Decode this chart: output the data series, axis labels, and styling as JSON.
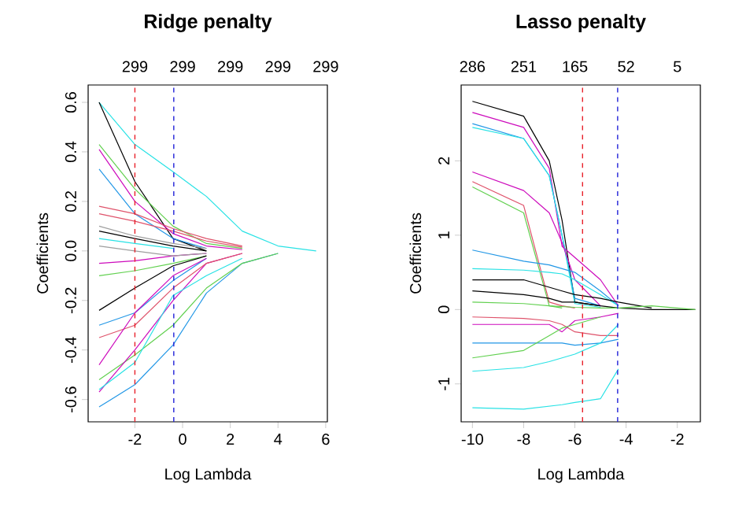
{
  "chart_data": [
    {
      "type": "line",
      "title": "Ridge penalty",
      "xlabel": "Log Lambda",
      "ylabel": "Coefficients",
      "xlim": [
        -3.96,
        6.07
      ],
      "ylim": [
        -0.69,
        0.67
      ],
      "xticks": [
        -2,
        0,
        2,
        4,
        6
      ],
      "yticks": [
        -0.6,
        -0.4,
        -0.2,
        {
          "value": 0,
          "label": "0.0"
        },
        0.2,
        0.4,
        0.6
      ],
      "annotations": [
        "299",
        "299",
        "299",
        "299",
        "299"
      ],
      "x": [
        -3.5,
        -2,
        -0.4,
        1,
        2.5,
        4,
        5.6
      ],
      "series": [
        {
          "color": "#28E2E5",
          "values": [
            0.6,
            0.43,
            0.32,
            0.22,
            0.08,
            0.02,
            0
          ]
        },
        {
          "color": "#000000",
          "values": [
            0.6,
            0.28,
            0.05,
            0.0,
            null,
            null,
            null
          ]
        },
        {
          "color": "#CD0BBC",
          "values": [
            0.41,
            0.2,
            0.07,
            0.02,
            0.005,
            null,
            null
          ]
        },
        {
          "color": "#61D04F",
          "values": [
            0.43,
            0.25,
            0.1,
            0.03,
            0.01,
            null,
            null
          ]
        },
        {
          "color": "#2297E6",
          "values": [
            0.33,
            0.15,
            0.05,
            0.01,
            null,
            null,
            null
          ]
        },
        {
          "color": "#DF536B",
          "values": [
            0.15,
            0.12,
            0.08,
            0.04,
            0.015,
            null,
            null
          ]
        },
        {
          "color": "#9E9E9E",
          "values": [
            0.1,
            0.06,
            0.03,
            0.01,
            null,
            null,
            null
          ]
        },
        {
          "color": "#000000",
          "values": [
            0.08,
            0.05,
            0.02,
            0,
            null,
            null,
            null
          ]
        },
        {
          "color": "#28E2E5",
          "values": [
            0.05,
            0.03,
            0.01,
            null,
            null,
            null,
            null
          ]
        },
        {
          "color": "#CD0BBC",
          "values": [
            -0.05,
            -0.04,
            -0.02,
            -0.01,
            null,
            null,
            null
          ]
        },
        {
          "color": "#61D04F",
          "values": [
            -0.1,
            -0.08,
            -0.05,
            -0.02,
            null,
            null,
            null
          ]
        },
        {
          "color": "#000000",
          "values": [
            -0.24,
            -0.15,
            -0.06,
            -0.02,
            null,
            null,
            null
          ]
        },
        {
          "color": "#2297E6",
          "values": [
            -0.63,
            -0.54,
            -0.38,
            -0.17,
            -0.05,
            -0.01,
            null
          ]
        },
        {
          "color": "#61D04F",
          "values": [
            -0.52,
            -0.42,
            -0.3,
            -0.15,
            -0.05,
            -0.01,
            null
          ]
        },
        {
          "color": "#CD0BBC",
          "values": [
            -0.57,
            -0.4,
            -0.2,
            -0.05,
            -0.01,
            null,
            null
          ]
        },
        {
          "color": "#28E2E5",
          "values": [
            -0.56,
            -0.45,
            -0.18,
            -0.1,
            -0.03,
            null,
            null
          ]
        },
        {
          "color": "#DF536B",
          "values": [
            -0.35,
            -0.3,
            -0.15,
            -0.05,
            -0.01,
            null,
            null
          ]
        },
        {
          "color": "#2297E6",
          "values": [
            -0.3,
            -0.25,
            -0.12,
            -0.03,
            null,
            null,
            null
          ]
        },
        {
          "color": "#CD0BBC",
          "values": [
            -0.46,
            -0.25,
            -0.1,
            -0.03,
            null,
            null,
            null
          ]
        },
        {
          "color": "#9E9E9E",
          "values": [
            0.02,
            0.0,
            -0.02,
            -0.01,
            null,
            null,
            null
          ]
        },
        {
          "color": "#DF536B",
          "values": [
            0.18,
            0.15,
            0.09,
            0.05,
            0.02,
            null,
            null
          ]
        }
      ],
      "ref_lines": [
        {
          "axis": "x",
          "value": -2,
          "color": "#E8202A",
          "line_style": "dashed"
        },
        {
          "axis": "x",
          "value": -0.37,
          "color": "#2020D8",
          "line_style": "dashed"
        }
      ]
    },
    {
      "type": "line",
      "title": "Lasso penalty",
      "xlabel": "Log Lambda",
      "ylabel": "Coefficients",
      "xlim": [
        -10.44,
        -1.1
      ],
      "ylim": [
        -1.51,
        3.02
      ],
      "xticks": [
        -10,
        -8,
        -6,
        -4,
        -2
      ],
      "yticks": [
        -1,
        0,
        1,
        2
      ],
      "annotations": [
        "286",
        "251",
        "165",
        "52",
        "5"
      ],
      "x": [
        -10,
        -8,
        -7,
        -6.5,
        -6,
        -5,
        -4.3,
        -3,
        -1.3
      ],
      "series": [
        {
          "color": "#000000",
          "values": [
            2.8,
            2.6,
            2.0,
            1.2,
            0.1,
            0.05,
            0.02,
            0,
            0
          ]
        },
        {
          "color": "#CD0BBC",
          "values": [
            2.65,
            2.45,
            1.9,
            0.85,
            0.7,
            0.4,
            0.05,
            null,
            null
          ]
        },
        {
          "color": "#2297E6",
          "values": [
            2.5,
            2.3,
            1.8,
            1.0,
            0.15,
            0.05,
            null,
            null,
            null
          ]
        },
        {
          "color": "#28E2E5",
          "values": [
            2.45,
            2.3,
            1.8,
            1.0,
            0.08,
            0.03,
            null,
            null,
            null
          ]
        },
        {
          "color": "#CD0BBC",
          "values": [
            1.85,
            1.6,
            1.3,
            0.9,
            0.4,
            0.05,
            null,
            null,
            null
          ]
        },
        {
          "color": "#DF536B",
          "values": [
            1.72,
            1.4,
            0.1,
            0.05,
            0.02,
            null,
            null,
            null,
            null
          ]
        },
        {
          "color": "#61D04F",
          "values": [
            1.65,
            1.3,
            0.05,
            0.02,
            null,
            null,
            null,
            null,
            null
          ]
        },
        {
          "color": "#2297E6",
          "values": [
            0.8,
            0.65,
            0.6,
            0.55,
            0.5,
            0.25,
            0.05,
            null,
            null
          ]
        },
        {
          "color": "#28E2E5",
          "values": [
            0.55,
            0.53,
            0.5,
            0.48,
            0.4,
            0.2,
            0.05,
            null,
            null
          ]
        },
        {
          "color": "#000000",
          "values": [
            0.4,
            0.4,
            0.3,
            0.25,
            0.2,
            0.15,
            0.1,
            0.02,
            null
          ]
        },
        {
          "color": "#000000",
          "values": [
            0.25,
            0.2,
            0.15,
            0.1,
            0.1,
            0.05,
            null,
            null,
            null
          ]
        },
        {
          "color": "#61D04F",
          "values": [
            0.1,
            0.08,
            0.05,
            0.04,
            0.03,
            0.02,
            0.02,
            0.05,
            0
          ]
        },
        {
          "color": "#DF536B",
          "values": [
            -0.1,
            -0.12,
            -0.15,
            -0.2,
            -0.3,
            -0.35,
            -0.35,
            null,
            null
          ]
        },
        {
          "color": "#CD0BBC",
          "values": [
            -0.2,
            -0.2,
            -0.2,
            -0.3,
            -0.15,
            -0.1,
            -0.05,
            null,
            null
          ]
        },
        {
          "color": "#2297E6",
          "values": [
            -0.45,
            -0.45,
            -0.45,
            -0.45,
            -0.48,
            -0.45,
            -0.4,
            null,
            null
          ]
        },
        {
          "color": "#61D04F",
          "values": [
            -0.65,
            -0.55,
            -0.35,
            -0.25,
            -0.2,
            -0.1,
            null,
            null,
            null
          ]
        },
        {
          "color": "#28E2E5",
          "values": [
            -0.83,
            -0.78,
            -0.7,
            -0.65,
            -0.6,
            -0.45,
            -0.2,
            null,
            null
          ]
        },
        {
          "color": "#28E2E5",
          "values": [
            -1.32,
            -1.34,
            -1.3,
            -1.28,
            -1.25,
            -1.2,
            -0.8,
            null,
            null
          ]
        }
      ],
      "ref_lines": [
        {
          "axis": "x",
          "value": -5.7,
          "color": "#E8202A",
          "line_style": "dashed"
        },
        {
          "axis": "x",
          "value": -4.33,
          "color": "#2020D8",
          "line_style": "dashed"
        }
      ]
    }
  ]
}
